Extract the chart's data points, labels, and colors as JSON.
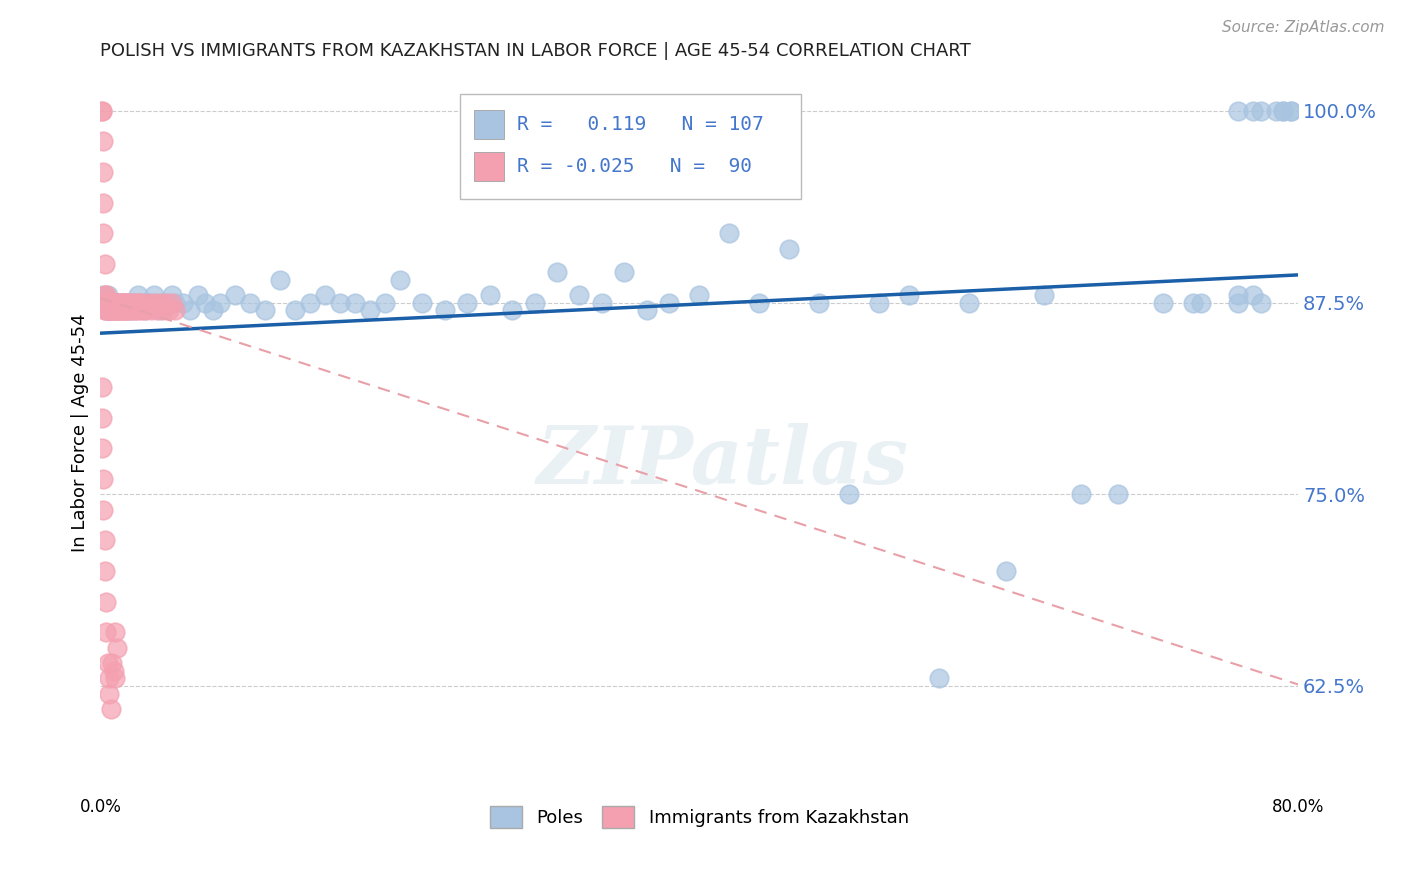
{
  "title": "POLISH VS IMMIGRANTS FROM KAZAKHSTAN IN LABOR FORCE | AGE 45-54 CORRELATION CHART",
  "source": "Source: ZipAtlas.com",
  "ylabel": "In Labor Force | Age 45-54",
  "xlim": [
    0.0,
    0.8
  ],
  "ylim": [
    0.555,
    1.025
  ],
  "yticks": [
    0.625,
    0.75,
    0.875,
    1.0
  ],
  "ytick_labels": [
    "62.5%",
    "75.0%",
    "87.5%",
    "100.0%"
  ],
  "xticks": [
    0.0,
    0.1,
    0.2,
    0.3,
    0.4,
    0.5,
    0.6,
    0.7,
    0.8
  ],
  "xtick_labels": [
    "0.0%",
    "",
    "",
    "",
    "",
    "",
    "",
    "",
    "80.0%"
  ],
  "blue_R": 0.119,
  "blue_N": 107,
  "pink_R": -0.025,
  "pink_N": 90,
  "blue_color": "#a8c4e0",
  "pink_color": "#f4a0b0",
  "blue_line_color": "#1a5fa8",
  "pink_line_color": "#e8a0a8",
  "grid_color": "#cccccc",
  "axis_label_color": "#4477cc",
  "blue_line_x0": 0.0,
  "blue_line_y0": 0.855,
  "blue_line_x1": 0.8,
  "blue_line_y1": 0.893,
  "pink_line_x0": 0.0,
  "pink_line_y0": 0.878,
  "pink_line_x1": 0.8,
  "pink_line_y1": 0.626,
  "blue_pts_x": [
    0.001,
    0.002,
    0.002,
    0.003,
    0.003,
    0.004,
    0.004,
    0.005,
    0.005,
    0.006,
    0.006,
    0.007,
    0.007,
    0.008,
    0.008,
    0.009,
    0.009,
    0.01,
    0.01,
    0.011,
    0.011,
    0.012,
    0.012,
    0.013,
    0.014,
    0.015,
    0.016,
    0.017,
    0.018,
    0.019,
    0.02,
    0.021,
    0.022,
    0.023,
    0.024,
    0.025,
    0.026,
    0.028,
    0.03,
    0.032,
    0.034,
    0.036,
    0.038,
    0.04,
    0.042,
    0.045,
    0.048,
    0.05,
    0.055,
    0.06,
    0.065,
    0.07,
    0.075,
    0.08,
    0.09,
    0.1,
    0.11,
    0.12,
    0.13,
    0.14,
    0.15,
    0.16,
    0.17,
    0.18,
    0.19,
    0.2,
    0.215,
    0.23,
    0.245,
    0.26,
    0.275,
    0.29,
    0.305,
    0.32,
    0.335,
    0.35,
    0.365,
    0.38,
    0.4,
    0.42,
    0.44,
    0.46,
    0.48,
    0.5,
    0.52,
    0.54,
    0.56,
    0.58,
    0.605,
    0.63,
    0.655,
    0.68,
    0.71,
    0.735,
    0.76,
    0.775,
    0.76,
    0.77,
    0.73,
    0.76,
    0.775,
    0.79,
    0.795,
    0.77,
    0.785,
    0.79,
    0.795
  ],
  "blue_pts_y": [
    0.875,
    0.875,
    0.88,
    0.875,
    0.87,
    0.875,
    0.875,
    0.88,
    0.87,
    0.875,
    0.87,
    0.875,
    0.87,
    0.875,
    0.875,
    0.87,
    0.875,
    0.875,
    0.87,
    0.875,
    0.875,
    0.87,
    0.875,
    0.875,
    0.87,
    0.875,
    0.875,
    0.87,
    0.875,
    0.875,
    0.87,
    0.875,
    0.875,
    0.87,
    0.875,
    0.88,
    0.875,
    0.875,
    0.87,
    0.875,
    0.875,
    0.88,
    0.875,
    0.87,
    0.875,
    0.875,
    0.88,
    0.875,
    0.875,
    0.87,
    0.88,
    0.875,
    0.87,
    0.875,
    0.88,
    0.875,
    0.87,
    0.89,
    0.87,
    0.875,
    0.88,
    0.875,
    0.875,
    0.87,
    0.875,
    0.89,
    0.875,
    0.87,
    0.875,
    0.88,
    0.87,
    0.875,
    0.895,
    0.88,
    0.875,
    0.895,
    0.87,
    0.875,
    0.88,
    0.92,
    0.875,
    0.91,
    0.875,
    0.75,
    0.875,
    0.88,
    0.63,
    0.875,
    0.7,
    0.88,
    0.75,
    0.75,
    0.875,
    0.875,
    0.88,
    0.875,
    0.875,
    0.88,
    0.875,
    1.0,
    1.0,
    1.0,
    1.0,
    1.0,
    1.0,
    1.0,
    1.0
  ],
  "pink_pts_x": [
    0.001,
    0.001,
    0.002,
    0.002,
    0.002,
    0.002,
    0.003,
    0.003,
    0.003,
    0.003,
    0.004,
    0.004,
    0.004,
    0.004,
    0.005,
    0.005,
    0.005,
    0.005,
    0.006,
    0.006,
    0.006,
    0.006,
    0.007,
    0.007,
    0.007,
    0.008,
    0.008,
    0.008,
    0.009,
    0.009,
    0.009,
    0.01,
    0.01,
    0.01,
    0.011,
    0.011,
    0.012,
    0.012,
    0.013,
    0.013,
    0.014,
    0.014,
    0.015,
    0.015,
    0.016,
    0.016,
    0.017,
    0.017,
    0.018,
    0.018,
    0.019,
    0.02,
    0.02,
    0.021,
    0.022,
    0.023,
    0.024,
    0.025,
    0.026,
    0.027,
    0.028,
    0.03,
    0.032,
    0.034,
    0.036,
    0.038,
    0.04,
    0.042,
    0.044,
    0.046,
    0.048,
    0.05,
    0.001,
    0.001,
    0.001,
    0.002,
    0.002,
    0.003,
    0.003,
    0.004,
    0.004,
    0.005,
    0.006,
    0.006,
    0.007,
    0.008,
    0.009,
    0.01,
    0.01,
    0.011
  ],
  "pink_pts_y": [
    1.0,
    1.0,
    0.98,
    0.96,
    0.94,
    0.92,
    0.9,
    0.88,
    0.87,
    0.875,
    0.875,
    0.87,
    0.875,
    0.88,
    0.875,
    0.87,
    0.875,
    0.87,
    0.875,
    0.87,
    0.875,
    0.875,
    0.87,
    0.875,
    0.87,
    0.875,
    0.87,
    0.875,
    0.875,
    0.87,
    0.875,
    0.875,
    0.87,
    0.875,
    0.875,
    0.87,
    0.875,
    0.87,
    0.875,
    0.87,
    0.875,
    0.87,
    0.875,
    0.87,
    0.875,
    0.87,
    0.875,
    0.87,
    0.875,
    0.87,
    0.875,
    0.87,
    0.875,
    0.87,
    0.875,
    0.87,
    0.875,
    0.87,
    0.875,
    0.87,
    0.875,
    0.87,
    0.875,
    0.87,
    0.875,
    0.87,
    0.875,
    0.87,
    0.875,
    0.87,
    0.875,
    0.87,
    0.82,
    0.8,
    0.78,
    0.76,
    0.74,
    0.72,
    0.7,
    0.68,
    0.66,
    0.64,
    0.63,
    0.62,
    0.61,
    0.64,
    0.635,
    0.66,
    0.63,
    0.65
  ],
  "watermark": "ZIPatlas"
}
